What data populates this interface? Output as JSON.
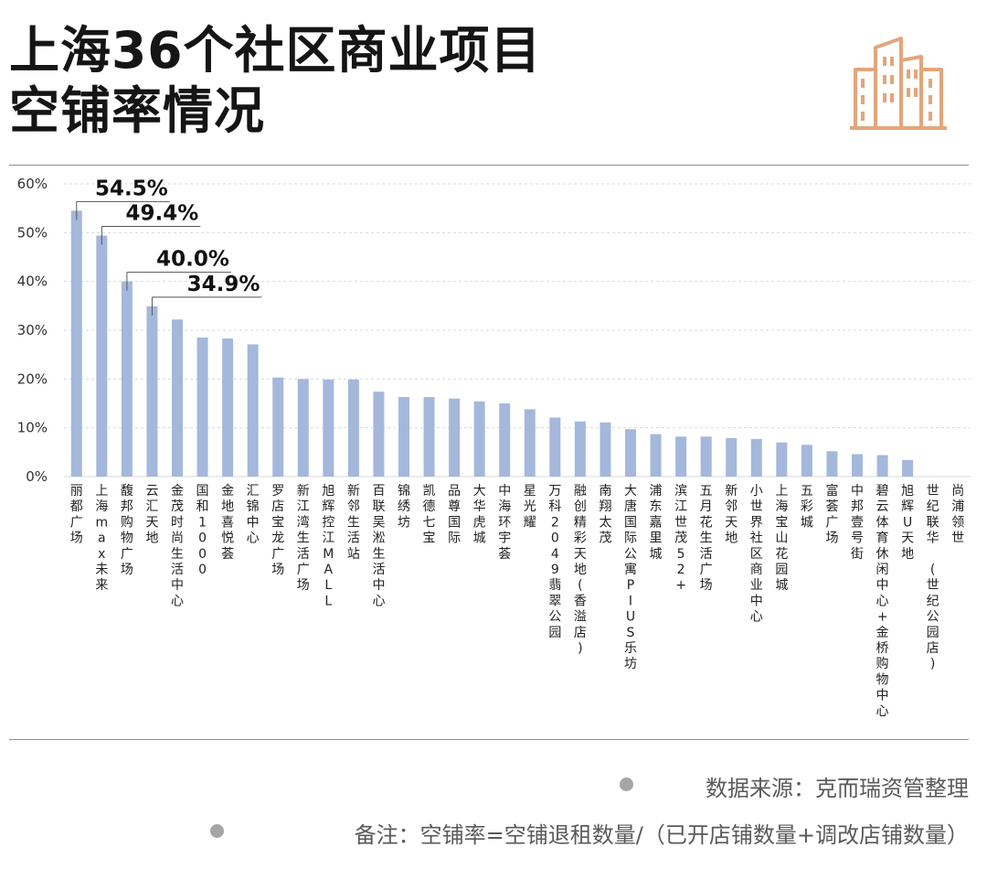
{
  "title": {
    "line1": "上海36个社区商业项目",
    "line2": "空铺率情况"
  },
  "logo_icon": "buildings-icon",
  "colors": {
    "bar": "#a3b8db",
    "logo": "#e2a67c",
    "text": "#1a1a1a",
    "grid": "#d9d9d9"
  },
  "chart_data": {
    "type": "bar",
    "y_ticks": [
      "0%",
      "10%",
      "20%",
      "30%",
      "40%",
      "50%",
      "60%"
    ],
    "ylim": [
      0,
      60
    ],
    "grid": true,
    "categories": [
      "丽都广场",
      "上海max未来",
      "馥邦购物广场",
      "云汇天地",
      "金茂时尚生活中心",
      "国和1000",
      "金地喜悦荟",
      "汇锦中心",
      "罗店宝龙广场",
      "新江湾生活广场",
      "旭辉控江MALL",
      "新邻生活站",
      "百联吴淞生活中心",
      "锦绣坊",
      "凯德七宝",
      "品尊国际",
      "大华虎城",
      "中海环宇荟",
      "星光耀",
      "万科2049翡翠公园",
      "融创精彩天地(香溢店)",
      "南翔太茂",
      "大唐国际公寓PIUS乐坊",
      "浦东嘉里城",
      "滨江世茂52+",
      "五月花生活广场",
      "新邻天地",
      "小世界社区商业中心",
      "上海宝山花园城",
      "五彩城",
      "富荟广场",
      "中邦壹号街",
      "碧云体育休闲中心+金桥购物中心",
      "旭辉U天地",
      "世纪联华 (世纪公园店)",
      "尚浦领世"
    ],
    "values": [
      54.5,
      49.4,
      40.0,
      34.9,
      32.2,
      28.5,
      28.3,
      27.1,
      20.3,
      20.0,
      19.9,
      19.9,
      17.4,
      16.3,
      16.3,
      16.0,
      15.4,
      15.0,
      13.8,
      12.1,
      11.3,
      11.1,
      9.7,
      8.7,
      8.2,
      8.2,
      7.9,
      7.7,
      7.0,
      6.5,
      5.2,
      4.6,
      4.4,
      3.4,
      0,
      0
    ],
    "callouts": [
      {
        "index": 0,
        "label": "54.5%"
      },
      {
        "index": 1,
        "label": "49.4%"
      },
      {
        "index": 2,
        "label": "40.0%"
      },
      {
        "index": 3,
        "label": "34.9%"
      }
    ]
  },
  "notes": {
    "source": "数据来源：克而瑞资管整理",
    "remark": "备注：空铺率=空铺退租数量/（已开店铺数量+调改店铺数量）"
  }
}
